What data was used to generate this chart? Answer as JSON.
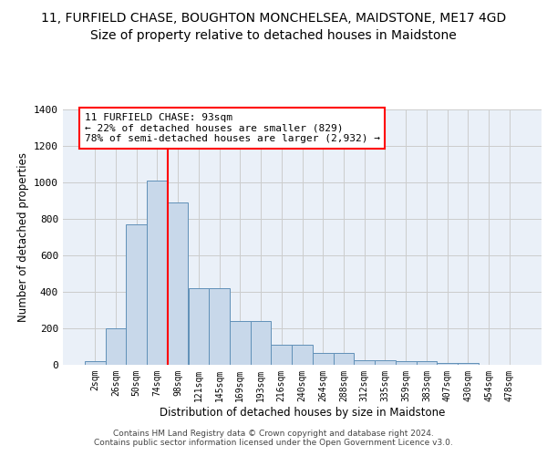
{
  "title_line1": "11, FURFIELD CHASE, BOUGHTON MONCHELSEA, MAIDSTONE, ME17 4GD",
  "title_line2": "Size of property relative to detached houses in Maidstone",
  "xlabel": "Distribution of detached houses by size in Maidstone",
  "ylabel": "Number of detached properties",
  "categories": [
    "2sqm",
    "26sqm",
    "50sqm",
    "74sqm",
    "98sqm",
    "121sqm",
    "145sqm",
    "169sqm",
    "193sqm",
    "216sqm",
    "240sqm",
    "264sqm",
    "288sqm",
    "312sqm",
    "335sqm",
    "359sqm",
    "383sqm",
    "407sqm",
    "430sqm",
    "454sqm",
    "478sqm"
  ],
  "values": [
    20,
    200,
    770,
    1010,
    890,
    420,
    420,
    240,
    240,
    110,
    110,
    65,
    65,
    25,
    25,
    20,
    20,
    10,
    10,
    0,
    0
  ],
  "bar_color": "#c8d8ea",
  "bar_edge_color": "#6090b8",
  "vline_x": 3.5,
  "annotation_text": "11 FURFIELD CHASE: 93sqm\n← 22% of detached houses are smaller (829)\n78% of semi-detached houses are larger (2,932) →",
  "annotation_box_facecolor": "white",
  "annotation_box_edgecolor": "red",
  "vline_color": "red",
  "ylim": [
    0,
    1400
  ],
  "yticks": [
    0,
    200,
    400,
    600,
    800,
    1000,
    1200,
    1400
  ],
  "grid_color": "#cccccc",
  "background_color": "#eaf0f8",
  "footer_text": "Contains HM Land Registry data © Crown copyright and database right 2024.\nContains public sector information licensed under the Open Government Licence v3.0.",
  "title_fontsize": 10,
  "subtitle_fontsize": 10,
  "bar_width": 1.0
}
